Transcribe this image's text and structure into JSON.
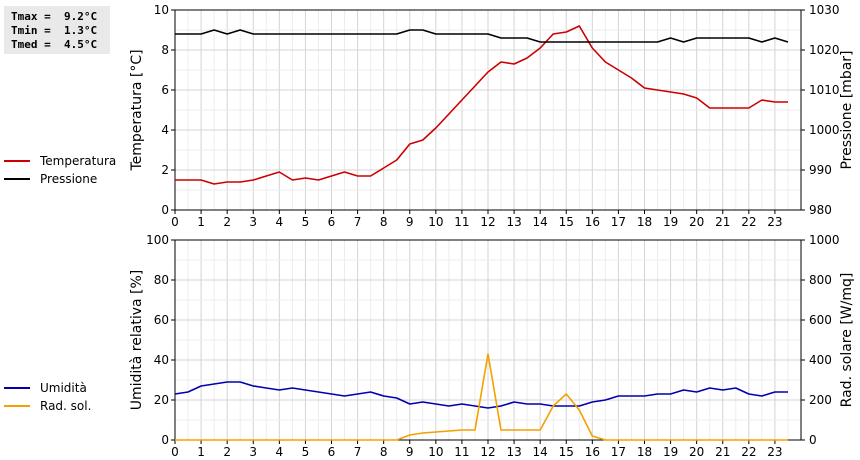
{
  "stats": {
    "tmax": "Tmax =  9.2°C",
    "tmin": "Tmin =  1.3°C",
    "tmed": "Tmed =  4.5°C"
  },
  "legend_top": [
    {
      "label": "Temperatura",
      "color": "#cc0000"
    },
    {
      "label": "Pressione",
      "color": "#000000"
    }
  ],
  "legend_bottom": [
    {
      "label": "Umidità",
      "color": "#0000b0"
    },
    {
      "label": "Rad. sol.",
      "color": "#f5a000"
    }
  ],
  "chart_data": [
    {
      "type": "line",
      "x_ticks": [
        "0",
        "1",
        "2",
        "3",
        "4",
        "5",
        "6",
        "7",
        "8",
        "9",
        "10",
        "11",
        "12",
        "13",
        "14",
        "15",
        "16",
        "17",
        "18",
        "19",
        "20",
        "21",
        "22",
        "23"
      ],
      "xlim": [
        0,
        24
      ],
      "ylabel_left": "Temperatura [°C]",
      "ylim_left": [
        0,
        10
      ],
      "yticks_left": [
        "0",
        "2",
        "4",
        "6",
        "8",
        "10"
      ],
      "ylabel_right": "Pressione [mbar]",
      "ylim_right": [
        980,
        1030
      ],
      "yticks_right": [
        "980",
        "990",
        "1000",
        "1010",
        "1020",
        "1030"
      ],
      "grid": true,
      "series": [
        {
          "name": "Temperatura",
          "axis": "left",
          "color": "#cc0000",
          "x": [
            0,
            0.5,
            1,
            1.5,
            2,
            2.5,
            3,
            3.5,
            4,
            4.5,
            5,
            5.5,
            6,
            6.5,
            7,
            7.5,
            8,
            8.5,
            9,
            9.5,
            10,
            10.5,
            11,
            11.5,
            12,
            12.5,
            13,
            13.5,
            14,
            14.5,
            15,
            15.5,
            16,
            16.5,
            17,
            17.5,
            18,
            18.5,
            19,
            19.5,
            20,
            20.5,
            21,
            21.5,
            22,
            22.5,
            23,
            23.5
          ],
          "y": [
            1.5,
            1.5,
            1.5,
            1.3,
            1.4,
            1.4,
            1.5,
            1.7,
            1.9,
            1.5,
            1.6,
            1.5,
            1.7,
            1.9,
            1.7,
            1.7,
            2.1,
            2.5,
            3.3,
            3.5,
            4.1,
            4.8,
            5.5,
            6.2,
            6.9,
            7.4,
            7.3,
            7.6,
            8.1,
            8.8,
            8.9,
            9.2,
            8.1,
            7.4,
            7.0,
            6.6,
            6.1,
            6.0,
            5.9,
            5.8,
            5.6,
            5.1,
            5.1,
            5.1,
            5.1,
            5.5,
            5.4,
            5.4
          ]
        },
        {
          "name": "Pressione",
          "axis": "right",
          "color": "#000000",
          "x": [
            0,
            0.5,
            1,
            1.5,
            2,
            2.5,
            3,
            3.5,
            4,
            4.5,
            5,
            5.5,
            6,
            6.5,
            7,
            7.5,
            8,
            8.5,
            9,
            9.5,
            10,
            10.5,
            11,
            11.5,
            12,
            12.5,
            13,
            13.5,
            14,
            14.5,
            15,
            15.5,
            16,
            16.5,
            17,
            17.5,
            18,
            18.5,
            19,
            19.5,
            20,
            20.5,
            21,
            21.5,
            22,
            22.5,
            23,
            23.5
          ],
          "y": [
            1024,
            1024,
            1024,
            1025,
            1024,
            1025,
            1024,
            1024,
            1024,
            1024,
            1024,
            1024,
            1024,
            1024,
            1024,
            1024,
            1024,
            1024,
            1025,
            1025,
            1024,
            1024,
            1024,
            1024,
            1024,
            1023,
            1023,
            1023,
            1022,
            1022,
            1022,
            1022,
            1022,
            1022,
            1022,
            1022,
            1022,
            1022,
            1023,
            1022,
            1023,
            1023,
            1023,
            1023,
            1023,
            1022,
            1023,
            1022
          ]
        }
      ]
    },
    {
      "type": "line",
      "x_ticks": [
        "0",
        "1",
        "2",
        "3",
        "4",
        "5",
        "6",
        "7",
        "8",
        "9",
        "10",
        "11",
        "12",
        "13",
        "14",
        "15",
        "16",
        "17",
        "18",
        "19",
        "20",
        "21",
        "22",
        "23"
      ],
      "xlim": [
        0,
        24
      ],
      "ylabel_left": "Umidità relativa [%]",
      "ylim_left": [
        0,
        100
      ],
      "yticks_left": [
        "0",
        "20",
        "40",
        "60",
        "80",
        "100"
      ],
      "ylabel_right": "Rad. solare [W/mq]",
      "ylim_right": [
        0,
        1000
      ],
      "yticks_right": [
        "0",
        "200",
        "400",
        "600",
        "800",
        "1000"
      ],
      "grid": true,
      "series": [
        {
          "name": "Umidità",
          "axis": "left",
          "color": "#0000b0",
          "x": [
            0,
            0.5,
            1,
            1.5,
            2,
            2.5,
            3,
            3.5,
            4,
            4.5,
            5,
            5.5,
            6,
            6.5,
            7,
            7.5,
            8,
            8.5,
            9,
            9.5,
            10,
            10.5,
            11,
            11.5,
            12,
            12.5,
            13,
            13.5,
            14,
            14.5,
            15,
            15.5,
            16,
            16.5,
            17,
            17.5,
            18,
            18.5,
            19,
            19.5,
            20,
            20.5,
            21,
            21.5,
            22,
            22.5,
            23,
            23.5
          ],
          "y": [
            23,
            24,
            27,
            28,
            29,
            29,
            27,
            26,
            25,
            26,
            25,
            24,
            23,
            22,
            23,
            24,
            22,
            21,
            18,
            19,
            18,
            17,
            18,
            17,
            16,
            17,
            19,
            18,
            18,
            17,
            17,
            17,
            19,
            20,
            22,
            22,
            22,
            23,
            23,
            25,
            24,
            26,
            25,
            26,
            23,
            22,
            24,
            24
          ]
        },
        {
          "name": "Rad. sol.",
          "axis": "right",
          "color": "#f5a000",
          "x": [
            0,
            8.5,
            9,
            9.5,
            10,
            10.5,
            11,
            11.5,
            12,
            12.5,
            13,
            13.5,
            14,
            14.5,
            15,
            15.5,
            16,
            16.5,
            17,
            23.5
          ],
          "y": [
            0,
            0,
            25,
            35,
            40,
            45,
            50,
            50,
            430,
            50,
            50,
            50,
            50,
            170,
            230,
            150,
            20,
            0,
            0,
            0
          ]
        }
      ]
    }
  ]
}
